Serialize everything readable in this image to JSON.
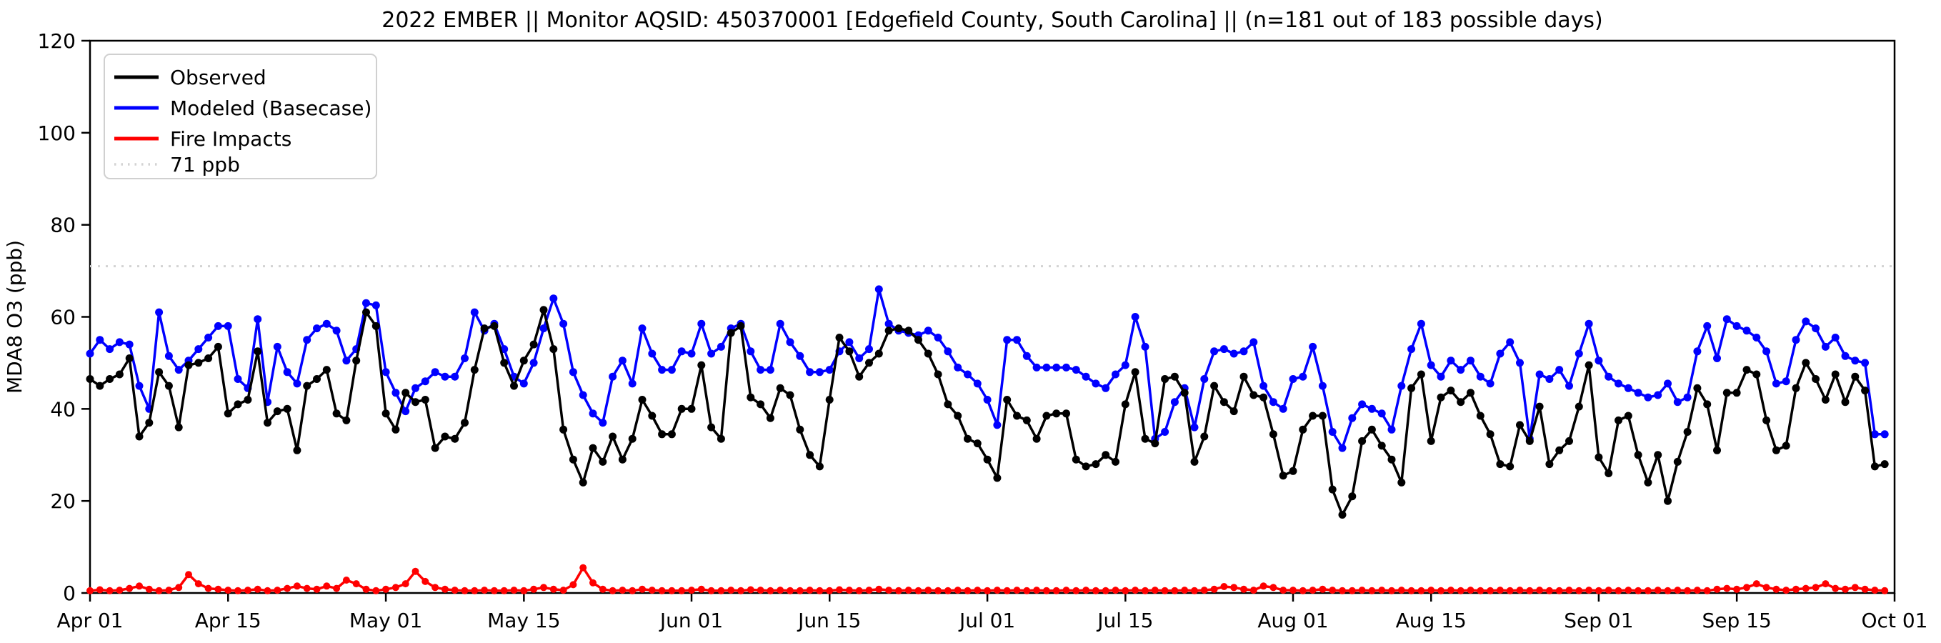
{
  "title": "2022 EMBER || Monitor AQSID: 450370001 [Edgefield County, South Carolina] || (n=181 out of 183 possible days)",
  "y_axis": {
    "label": "MDA8 O3 (ppb)",
    "min": 0,
    "max": 120,
    "ticks": [
      0,
      20,
      40,
      60,
      80,
      100,
      120
    ]
  },
  "x_axis": {
    "ticks": [
      {
        "label": "Apr 01",
        "day": 0
      },
      {
        "label": "Apr 15",
        "day": 14
      },
      {
        "label": "May 01",
        "day": 30
      },
      {
        "label": "May 15",
        "day": 44
      },
      {
        "label": "Jun 01",
        "day": 61
      },
      {
        "label": "Jun 15",
        "day": 75
      },
      {
        "label": "Jul 01",
        "day": 91
      },
      {
        "label": "Jul 15",
        "day": 105
      },
      {
        "label": "Aug 01",
        "day": 122
      },
      {
        "label": "Aug 15",
        "day": 136
      },
      {
        "label": "Sep 01",
        "day": 153
      },
      {
        "label": "Sep 15",
        "day": 167
      },
      {
        "label": "Oct 01",
        "day": 183
      }
    ]
  },
  "threshold": {
    "value": 71,
    "label": "71 ppb",
    "color": "#d3d3d3"
  },
  "legend_entries": [
    "Observed",
    "Modeled (Basecase)",
    "Fire Impacts",
    "71 ppb"
  ],
  "chart_data": {
    "type": "line",
    "title": "2022 EMBER || Monitor AQSID: 450370001 [Edgefield County, South Carolina] || (n=181 out of 183 possible days)",
    "xlabel": "",
    "ylabel": "MDA8 O3 (ppb)",
    "ylim": [
      0,
      120
    ],
    "x_start_date": "2022-04-01",
    "x_end_date": "2022-09-30",
    "x_axis_extends_to": "2022-10-01",
    "grid": false,
    "legend_position": "upper left",
    "reference_line_ppb": 71,
    "series": [
      {
        "name": "Observed",
        "color": "#000000",
        "marker": "circle",
        "values": [
          46.5,
          45,
          46.5,
          47.5,
          51,
          34,
          37,
          48,
          45,
          36,
          49.5,
          50,
          51,
          53.5,
          39,
          41,
          42,
          52.5,
          37,
          39.5,
          40,
          31,
          45,
          46.5,
          48.5,
          39,
          37.5,
          50.5,
          61,
          58,
          39,
          35.5,
          43.5,
          41.5,
          42,
          31.5,
          34,
          33.5,
          37,
          48.5,
          57.5,
          58,
          50,
          45,
          50.5,
          54,
          61.5,
          53,
          35.5,
          29,
          24,
          31.5,
          28.5,
          34,
          29,
          33.5,
          42,
          38.5,
          34.5,
          34.5,
          40,
          40,
          49.5,
          36,
          33.5,
          56.5,
          58,
          42.5,
          41,
          38,
          44.5,
          43,
          35.5,
          30,
          27.5,
          42,
          55.5,
          52.5,
          47,
          50,
          52,
          57,
          57.5,
          57,
          55,
          52,
          47.5,
          41,
          38.5,
          33.5,
          32.5,
          29,
          25,
          42,
          38.5,
          37.5,
          33.5,
          38.5,
          39,
          39,
          29,
          27.5,
          28,
          30,
          28.5,
          41,
          48,
          33.5,
          32.5,
          46.5,
          47,
          43.5,
          28.5,
          34,
          45,
          41.5,
          39.5,
          47,
          43,
          42.5,
          34.5,
          25.5,
          26.5,
          35.5,
          38.5,
          38.5,
          22.5,
          17,
          21,
          33,
          35.5,
          32,
          29,
          24,
          44.5,
          47.5,
          33,
          42.5,
          44,
          41.5,
          43.5,
          38.5,
          34.5,
          28,
          27.5,
          36.5,
          33,
          40.5,
          28,
          31,
          33,
          40.5,
          49.5,
          29.5,
          26,
          37.5,
          38.5,
          30,
          24,
          30,
          20,
          28.5,
          35,
          44.5,
          41,
          31,
          43.5,
          43.5,
          48.5,
          47.5,
          37.5,
          31,
          32,
          44.5,
          50,
          46.5,
          42,
          47.5,
          41.5,
          47,
          44,
          27.5,
          28
        ]
      },
      {
        "name": "Modeled (Basecase)",
        "color": "#0000ff",
        "marker": "circle",
        "values": [
          52,
          55,
          53,
          54.5,
          54,
          45,
          40,
          61,
          51.5,
          48.5,
          50.5,
          53,
          55.5,
          58,
          58,
          46.5,
          44.5,
          59.5,
          41.5,
          53.5,
          48,
          45.5,
          55,
          57.5,
          58.5,
          57,
          50.5,
          53,
          63,
          62.5,
          48,
          43.5,
          39.5,
          44.5,
          46,
          48,
          47,
          47,
          51,
          61,
          57,
          58.5,
          53,
          47,
          45.5,
          50,
          57.5,
          64,
          58.5,
          48,
          43,
          39,
          37,
          47,
          50.5,
          45.5,
          57.5,
          52,
          48.5,
          48.5,
          52.5,
          52,
          58.5,
          52,
          53.5,
          57.5,
          58.5,
          52.5,
          48.5,
          48.5,
          58.5,
          54.5,
          51.5,
          48,
          48,
          48.5,
          52.5,
          54.5,
          51,
          53,
          66,
          58.5,
          57,
          56.5,
          56,
          57,
          55.5,
          52.5,
          49,
          47.5,
          45.5,
          42,
          36.5,
          55,
          55,
          51.5,
          49,
          49,
          49,
          49,
          48.5,
          47,
          45.5,
          44.5,
          47.5,
          49.5,
          60,
          53.5,
          33.5,
          35,
          41.5,
          44.5,
          36,
          46.5,
          52.5,
          53,
          52,
          52.5,
          54.5,
          45,
          41.5,
          40,
          46.5,
          47,
          53.5,
          45,
          35,
          31.5,
          38,
          41,
          40,
          39,
          35.5,
          45,
          53,
          58.5,
          49.5,
          47,
          50.5,
          48.5,
          50.5,
          47,
          45.5,
          52,
          54.5,
          50,
          33.5,
          47.5,
          46.5,
          48.5,
          45,
          52,
          58.5,
          50.5,
          47,
          45.5,
          44.5,
          43.5,
          42.5,
          43,
          45.5,
          41.5,
          42.5,
          52.5,
          58,
          51,
          59.5,
          58,
          57,
          55.5,
          52.5,
          45.5,
          46,
          55,
          59,
          57.5,
          53.5,
          55.5,
          51.5,
          50.5,
          50,
          34.5,
          34.5
        ]
      },
      {
        "name": "Fire Impacts",
        "color": "#ff0000",
        "marker": "circle",
        "values": [
          0.5,
          0.7,
          0.5,
          0.6,
          1.0,
          1.5,
          0.8,
          0.5,
          0.6,
          1.2,
          4.0,
          2.0,
          1.0,
          0.8,
          0.6,
          0.5,
          0.6,
          0.8,
          0.5,
          0.6,
          1.0,
          1.5,
          1.0,
          0.8,
          1.5,
          1.0,
          2.8,
          2.0,
          0.8,
          0.5,
          0.8,
          1.2,
          2.0,
          4.7,
          2.5,
          1.2,
          0.8,
          0.6,
          0.5,
          0.5,
          0.6,
          0.5,
          0.5,
          0.6,
          0.5,
          0.8,
          1.2,
          0.8,
          0.6,
          1.8,
          5.5,
          2.2,
          0.8,
          0.5,
          0.6,
          0.5,
          0.8,
          0.6,
          0.5,
          0.5,
          0.5,
          0.6,
          0.8,
          0.5,
          0.5,
          0.6,
          0.5,
          0.7,
          0.6,
          0.5,
          0.6,
          0.5,
          0.5,
          0.6,
          0.5,
          0.5,
          0.7,
          0.6,
          0.5,
          0.6,
          0.8,
          0.6,
          0.5,
          0.6,
          0.5,
          0.6,
          0.5,
          0.5,
          0.6,
          0.5,
          0.6,
          0.5,
          0.6,
          0.5,
          0.6,
          0.5,
          0.6,
          0.5,
          0.5,
          0.6,
          0.5,
          0.6,
          0.5,
          0.5,
          0.6,
          0.5,
          0.6,
          0.5,
          0.6,
          0.5,
          0.5,
          0.6,
          0.5,
          0.6,
          0.8,
          1.4,
          1.2,
          0.8,
          0.6,
          1.5,
          1.2,
          0.6,
          0.6,
          0.5,
          0.6,
          0.8,
          0.6,
          0.5,
          0.5,
          0.6,
          0.5,
          0.6,
          0.5,
          0.6,
          0.5,
          0.5,
          0.6,
          0.5,
          0.6,
          0.5,
          0.6,
          0.5,
          0.5,
          0.6,
          0.5,
          0.6,
          0.5,
          0.6,
          0.5,
          0.5,
          0.6,
          0.5,
          0.6,
          0.5,
          0.6,
          0.5,
          0.6,
          0.5,
          0.5,
          0.6,
          0.5,
          0.6,
          0.5,
          0.6,
          0.5,
          0.8,
          1.0,
          0.8,
          1.2,
          2.0,
          1.2,
          0.8,
          0.6,
          0.8,
          1.0,
          1.2,
          2.0,
          1.0,
          0.8,
          1.2,
          0.8,
          0.6,
          0.5
        ]
      }
    ]
  }
}
